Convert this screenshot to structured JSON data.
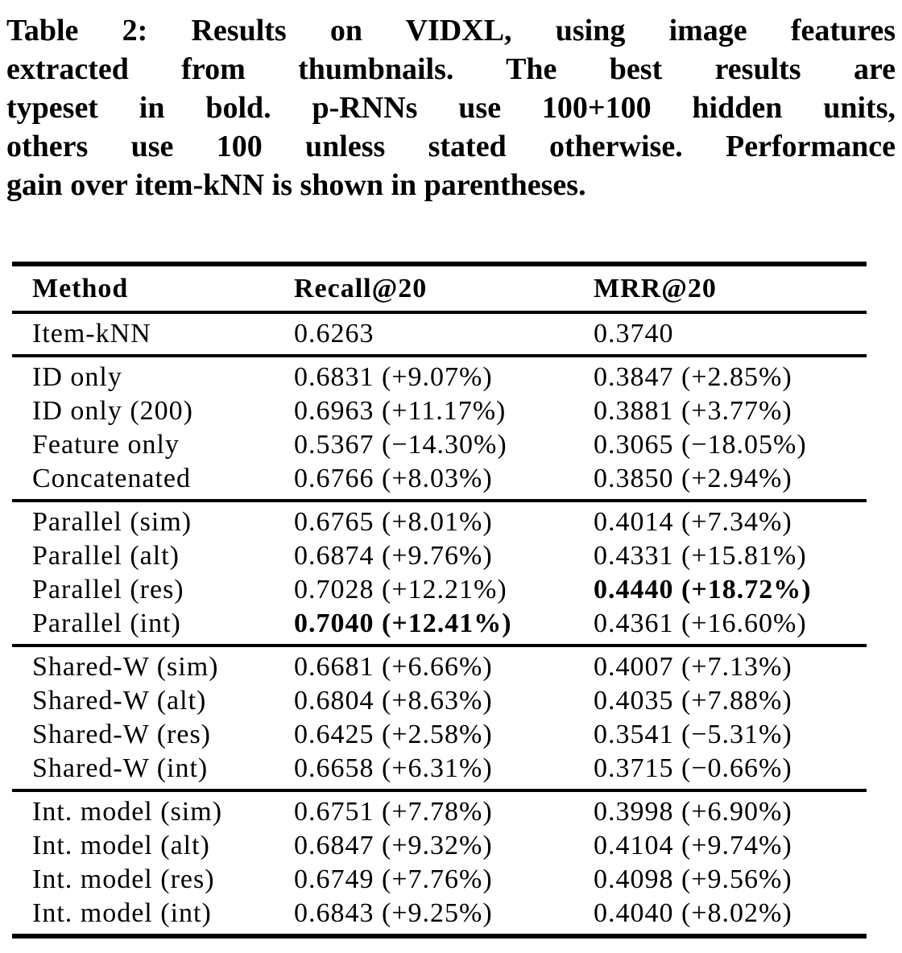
{
  "caption": {
    "lines": [
      "Table 2: Results on VIDXL, using image features",
      "extracted from thumbnails. The best results are",
      "typeset in bold. p-RNNs use 100+100 hidden units,",
      "others use 100 unless stated otherwise. Performance",
      "gain over item-kNN is shown in parentheses."
    ]
  },
  "table": {
    "columns": [
      "Method",
      "Recall@20",
      "MRR@20"
    ],
    "sections": [
      {
        "rows": [
          {
            "method": "Item-kNN",
            "recall": "0.6263",
            "mrr": "0.3740",
            "bold": []
          }
        ]
      },
      {
        "rows": [
          {
            "method": "ID only",
            "recall": "0.6831 (+9.07%)",
            "mrr": "0.3847 (+2.85%)",
            "bold": []
          },
          {
            "method": "ID only (200)",
            "recall": "0.6963 (+11.17%)",
            "mrr": "0.3881 (+3.77%)",
            "bold": []
          },
          {
            "method": "Feature only",
            "recall": "0.5367 (−14.30%)",
            "mrr": "0.3065 (−18.05%)",
            "bold": []
          },
          {
            "method": "Concatenated",
            "recall": "0.6766 (+8.03%)",
            "mrr": "0.3850 (+2.94%)",
            "bold": []
          }
        ]
      },
      {
        "rows": [
          {
            "method": "Parallel (sim)",
            "recall": "0.6765 (+8.01%)",
            "mrr": "0.4014 (+7.34%)",
            "bold": []
          },
          {
            "method": "Parallel (alt)",
            "recall": "0.6874 (+9.76%)",
            "mrr": "0.4331 (+15.81%)",
            "bold": []
          },
          {
            "method": "Parallel (res)",
            "recall": "0.7028 (+12.21%)",
            "mrr": "0.4440 (+18.72%)",
            "bold": [
              "mrr"
            ]
          },
          {
            "method": "Parallel (int)",
            "recall": "0.7040 (+12.41%)",
            "mrr": "0.4361 (+16.60%)",
            "bold": [
              "recall"
            ]
          }
        ]
      },
      {
        "rows": [
          {
            "method": "Shared-W (sim)",
            "recall": "0.6681 (+6.66%)",
            "mrr": "0.4007 (+7.13%)",
            "bold": []
          },
          {
            "method": "Shared-W (alt)",
            "recall": "0.6804 (+8.63%)",
            "mrr": "0.4035 (+7.88%)",
            "bold": []
          },
          {
            "method": "Shared-W (res)",
            "recall": "0.6425 (+2.58%)",
            "mrr": "0.3541 (−5.31%)",
            "bold": []
          },
          {
            "method": "Shared-W (int)",
            "recall": "0.6658 (+6.31%)",
            "mrr": "0.3715 (−0.66%)",
            "bold": []
          }
        ]
      },
      {
        "rows": [
          {
            "method": "Int. model (sim)",
            "recall": "0.6751 (+7.78%)",
            "mrr": "0.3998 (+6.90%)",
            "bold": []
          },
          {
            "method": "Int. model (alt)",
            "recall": "0.6847 (+9.32%)",
            "mrr": "0.4104 (+9.74%)",
            "bold": []
          },
          {
            "method": "Int. model (res)",
            "recall": "0.6749 (+7.76%)",
            "mrr": "0.4098 (+9.56%)",
            "bold": []
          },
          {
            "method": "Int. model (int)",
            "recall": "0.6843 (+9.25%)",
            "mrr": "0.4040 (+8.02%)",
            "bold": []
          }
        ]
      }
    ]
  },
  "colors": {
    "text": "#000000",
    "background": "#ffffff"
  }
}
